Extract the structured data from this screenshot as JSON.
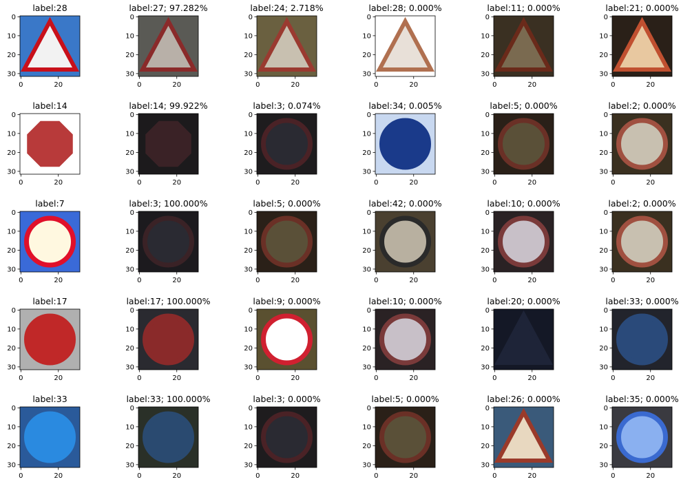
{
  "panels": [
    [
      "label:28",
      "label:27; 97.282%",
      "label:24; 2.718%",
      "label:28; 0.000%",
      "label:11; 0.000%",
      "label:21; 0.000%"
    ],
    [
      "label:14",
      "label:14; 99.922%",
      "label:3; 0.074%",
      "label:34; 0.005%",
      "label:5; 0.000%",
      "label:2; 0.000%"
    ],
    [
      "label:7",
      "label:3; 100.000%",
      "label:5; 0.000%",
      "label:42; 0.000%",
      "label:10; 0.000%",
      "label:2; 0.000%"
    ],
    [
      "label:17",
      "label:17; 100.000%",
      "label:9; 0.000%",
      "label:10; 0.000%",
      "label:20; 0.000%",
      "label:33; 0.000%"
    ],
    [
      "label:33",
      "label:33; 100.000%",
      "label:3; 0.000%",
      "label:5; 0.000%",
      "label:26; 0.000%",
      "label:35; 0.000%"
    ]
  ],
  "xticks": [
    0,
    20
  ],
  "yticks": [
    0,
    10,
    20,
    30
  ]
}
